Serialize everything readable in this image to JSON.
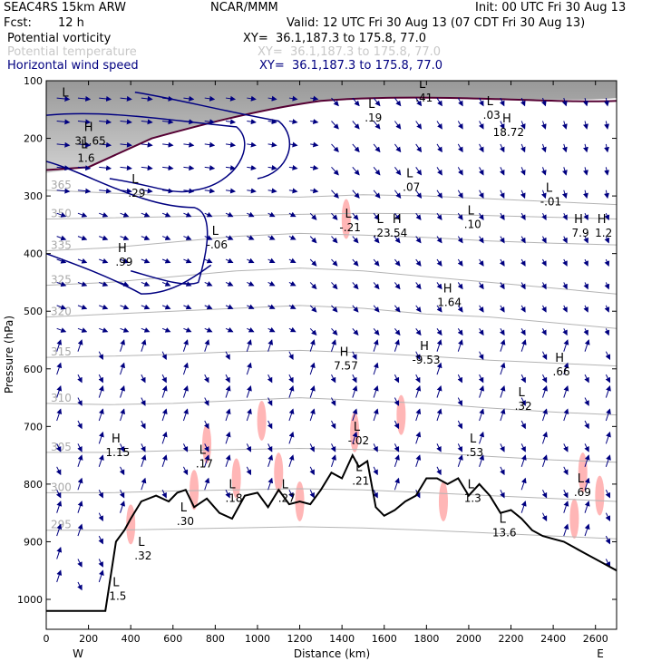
{
  "header": {
    "model": "SEAC4RS 15km ARW",
    "org": "NCAR/MMM",
    "init": "Init: 00 UTC Fri 30 Aug 13",
    "fcst_label": "Fcst:",
    "fcst_value": "12 h",
    "valid": "Valid: 12 UTC Fri 30 Aug 13 (07 CDT Fri 30 Aug 13)",
    "fields": [
      {
        "name": "Potential vorticity",
        "xy": "XY=  36.1,187.3 to 175.8, 77.0"
      },
      {
        "name": "Potential temperature",
        "xy": "XY=  36.1,187.3 to 175.8, 77.0"
      },
      {
        "name": "Horizontal wind speed",
        "xy": "XY=  36.1,187.3 to 175.8, 77.0"
      }
    ]
  },
  "colors": {
    "pv_contour": "#000080",
    "theta_contour": "#b4b4b4",
    "terrain": "#000000",
    "wind_vector": "#000080",
    "pv_fill": "#ffb6b6",
    "shade_dark": "#555555",
    "tropopause": "#550033"
  },
  "chart_data": {
    "type": "cross-section",
    "xlabel": "Distance (km)",
    "ylabel": "Pressure (hPa)",
    "xlim": [
      0,
      2700
    ],
    "ylim": [
      1050,
      100
    ],
    "xticks": [
      0,
      200,
      400,
      600,
      800,
      1000,
      1200,
      1400,
      1600,
      1800,
      2000,
      2200,
      2400,
      2600
    ],
    "yticks": [
      100,
      200,
      300,
      400,
      500,
      600,
      700,
      800,
      900,
      1000
    ],
    "left_end": "W",
    "right_end": "E",
    "terrain": {
      "x": [
        0,
        150,
        280,
        330,
        370,
        400,
        450,
        520,
        580,
        620,
        660,
        700,
        760,
        820,
        880,
        940,
        1000,
        1050,
        1100,
        1150,
        1200,
        1250,
        1300,
        1350,
        1400,
        1450,
        1480,
        1520,
        1560,
        1600,
        1650,
        1700,
        1750,
        1800,
        1850,
        1900,
        1950,
        2000,
        2050,
        2100,
        2150,
        2200,
        2250,
        2300,
        2350,
        2400,
        2450,
        2500,
        2550,
        2600,
        2650,
        2700
      ],
      "p": [
        1020,
        1020,
        1020,
        900,
        880,
        860,
        830,
        820,
        830,
        815,
        810,
        840,
        825,
        850,
        860,
        820,
        815,
        840,
        810,
        835,
        830,
        835,
        810,
        780,
        790,
        750,
        770,
        760,
        840,
        855,
        845,
        830,
        820,
        790,
        790,
        800,
        790,
        820,
        800,
        820,
        850,
        845,
        860,
        880,
        890,
        895,
        900,
        910,
        920,
        930,
        940,
        950
      ]
    },
    "theta_contours": [
      {
        "value": "365",
        "p": [
          290,
          295,
          300,
          300,
          302,
          298,
          300,
          305,
          310,
          315
        ]
      },
      {
        "value": "350",
        "p": [
          340,
          338,
          336,
          334,
          332,
          330,
          331,
          334,
          337,
          340
        ]
      },
      {
        "value": "335",
        "p": [
          395,
          390,
          380,
          370,
          365,
          368,
          372,
          378,
          382,
          385
        ]
      },
      {
        "value": "325",
        "p": [
          455,
          450,
          440,
          430,
          425,
          430,
          440,
          450,
          460,
          470
        ]
      },
      {
        "value": "320",
        "p": [
          510,
          505,
          500,
          495,
          490,
          495,
          505,
          510,
          520,
          530
        ]
      },
      {
        "value": "315",
        "p": [
          580,
          578,
          575,
          570,
          568,
          572,
          578,
          585,
          590,
          595
        ]
      },
      {
        "value": "310",
        "p": [
          660,
          662,
          660,
          655,
          650,
          655,
          660,
          668,
          675,
          680
        ]
      },
      {
        "value": "305",
        "p": [
          745,
          745,
          742,
          740,
          738,
          740,
          745,
          752,
          758,
          762
        ]
      },
      {
        "value": "300",
        "p": [
          815,
          815,
          812,
          810,
          808,
          810,
          815,
          820,
          825,
          830
        ]
      },
      {
        "value": "295",
        "p": [
          880,
          880,
          878,
          876,
          874,
          876,
          880,
          885,
          890,
          895
        ]
      }
    ],
    "theta_x": [
      0,
      300,
      600,
      900,
      1200,
      1500,
      1800,
      2100,
      2400,
      2700
    ],
    "extrema": [
      {
        "t": "L",
        "v": "",
        "x": 90,
        "p": 140
      },
      {
        "t": "H",
        "v": "31.65",
        "x": 200,
        "p": 200
      },
      {
        "t": "L",
        "v": "1.6",
        "x": 180,
        "p": 230
      },
      {
        "t": "L",
        "v": ".29",
        "x": 420,
        "p": 290
      },
      {
        "t": "H",
        "v": ".99",
        "x": 360,
        "p": 410
      },
      {
        "t": "L",
        "v": "-.06",
        "x": 800,
        "p": 380
      },
      {
        "t": "L",
        "v": ".19",
        "x": 1540,
        "p": 160
      },
      {
        "t": "L",
        "v": ".41",
        "x": 1780,
        "p": 125
      },
      {
        "t": "L",
        "v": ".03",
        "x": 2100,
        "p": 155
      },
      {
        "t": "H",
        "v": "18.72",
        "x": 2180,
        "p": 185
      },
      {
        "t": "L",
        "v": ".07",
        "x": 1720,
        "p": 280
      },
      {
        "t": "L",
        "v": "-.21",
        "x": 1430,
        "p": 350
      },
      {
        "t": "L",
        "v": ".23",
        "x": 1580,
        "p": 360
      },
      {
        "t": "H",
        "v": ".54",
        "x": 1660,
        "p": 360
      },
      {
        "t": "L",
        "v": ".10",
        "x": 2010,
        "p": 345
      },
      {
        "t": "L",
        "v": "-.01",
        "x": 2380,
        "p": 305
      },
      {
        "t": "H",
        "v": "7.9",
        "x": 2520,
        "p": 360
      },
      {
        "t": "H",
        "v": "1.2",
        "x": 2630,
        "p": 360
      },
      {
        "t": "H",
        "v": "1.64",
        "x": 1900,
        "p": 480
      },
      {
        "t": "H",
        "v": "7.57",
        "x": 1410,
        "p": 590
      },
      {
        "t": "H",
        "v": "-9.53",
        "x": 1790,
        "p": 580
      },
      {
        "t": "H",
        "v": ".66",
        "x": 2430,
        "p": 600
      },
      {
        "t": "L",
        "v": ".32",
        "x": 2250,
        "p": 660
      },
      {
        "t": "L",
        "v": "-.02",
        "x": 1470,
        "p": 720
      },
      {
        "t": "L",
        "v": ".53",
        "x": 2020,
        "p": 740
      },
      {
        "t": "H",
        "v": "1.15",
        "x": 330,
        "p": 740
      },
      {
        "t": "L",
        "v": ".17",
        "x": 740,
        "p": 760
      },
      {
        "t": "L",
        "v": ".18",
        "x": 880,
        "p": 820
      },
      {
        "t": "L",
        "v": ".27",
        "x": 1130,
        "p": 820
      },
      {
        "t": "L",
        "v": ".21",
        "x": 1480,
        "p": 790
      },
      {
        "t": "L",
        "v": "1.3",
        "x": 2010,
        "p": 820
      },
      {
        "t": "L",
        "v": "13.6",
        "x": 2160,
        "p": 880
      },
      {
        "t": "L",
        "v": ".69",
        "x": 2530,
        "p": 810
      },
      {
        "t": "L",
        "v": ".30",
        "x": 650,
        "p": 860
      },
      {
        "t": "L",
        "v": ".32",
        "x": 450,
        "p": 920
      },
      {
        "t": "L",
        "v": "1.5",
        "x": 330,
        "p": 990
      }
    ]
  }
}
